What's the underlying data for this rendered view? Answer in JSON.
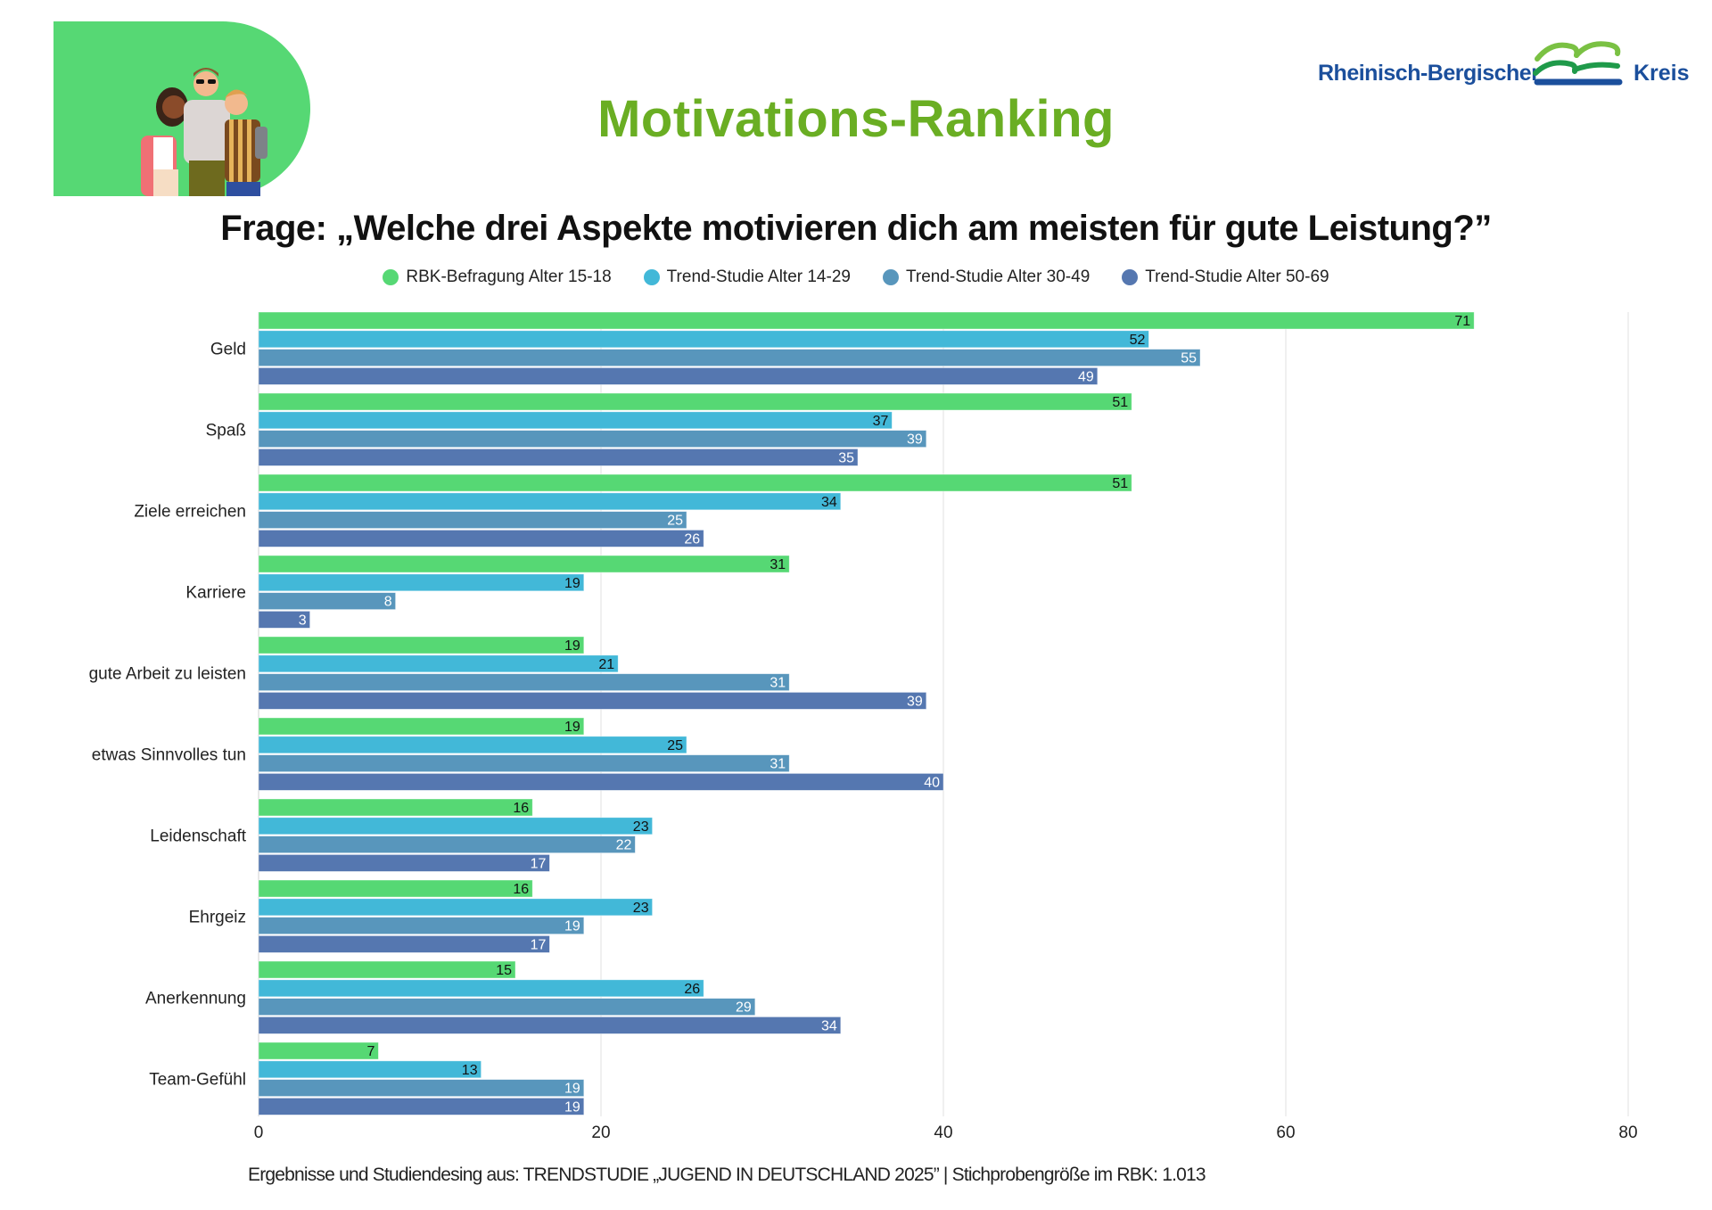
{
  "header": {
    "title": "Motivations-Ranking",
    "question": "Frage: „Welche drei Aspekte motivieren dich am meisten für gute Leistung?”",
    "logo": {
      "text_left": "Rheinisch-Bergischer",
      "text_right": "Kreis",
      "icon": "landscape-waves-icon"
    },
    "illustration": "group-of-young-people-illustration"
  },
  "legend": [
    {
      "label": "RBK-Befragung Alter 15-18",
      "color": "#56d874"
    },
    {
      "label": "Trend-Studie Alter 14-29",
      "color": "#42b8d8"
    },
    {
      "label": "Trend-Studie Alter 30-49",
      "color": "#5896bc"
    },
    {
      "label": "Trend-Studie Alter 50-69",
      "color": "#5577b0"
    }
  ],
  "footer": {
    "source": "Ergebnisse und Studiendesing aus: TRENDSTUDIE „JUGEND IN DEUTSCHLAND 2025”  | Stichprobengröße im RBK:  1.013"
  },
  "chart_data": {
    "type": "bar",
    "orientation": "horizontal",
    "title": "Motivations-Ranking",
    "subtitle": "Frage: „Welche drei Aspekte motivieren dich am meisten für gute Leistung?”",
    "xlabel": "",
    "ylabel": "",
    "xlim": [
      0,
      80
    ],
    "xticks": [
      0,
      20,
      40,
      60,
      80
    ],
    "grid": true,
    "legend_position": "top-center",
    "categories": [
      "Geld",
      "Spaß",
      "Ziele erreichen",
      "Karriere",
      "gute Arbeit zu leisten",
      "etwas Sinnvolles tun",
      "Leidenschaft",
      "Ehrgeiz",
      "Anerkennung",
      "Team-Gefühl"
    ],
    "series": [
      {
        "name": "RBK-Befragung Alter 15-18",
        "color": "#56d874",
        "label_color": "#111111",
        "values": [
          71,
          51,
          51,
          31,
          19,
          19,
          16,
          16,
          15,
          7
        ]
      },
      {
        "name": "Trend-Studie Alter 14-29",
        "color": "#42b8d8",
        "label_color": "#111111",
        "values": [
          52,
          37,
          34,
          19,
          21,
          25,
          23,
          23,
          26,
          13
        ]
      },
      {
        "name": "Trend-Studie Alter 30-49",
        "color": "#5896bc",
        "label_color": "#ffffff",
        "values": [
          55,
          39,
          25,
          8,
          31,
          31,
          22,
          19,
          29,
          19
        ]
      },
      {
        "name": "Trend-Studie Alter 50-69",
        "color": "#5577b0",
        "label_color": "#ffffff",
        "values": [
          49,
          35,
          26,
          3,
          39,
          40,
          17,
          17,
          34,
          19
        ]
      }
    ]
  }
}
